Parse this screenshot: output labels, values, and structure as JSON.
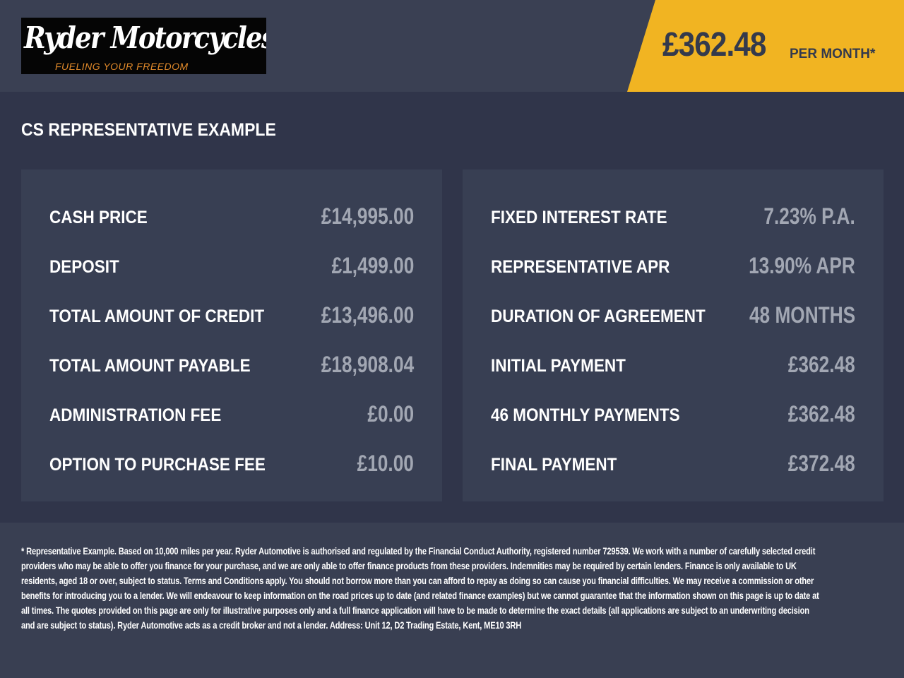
{
  "header": {
    "logo": {
      "name": "Ryder Motorcycles",
      "tagline": "FUELING YOUR FREEDOM"
    },
    "monthly_price": "£362.48",
    "per_month_label": "PER MONTH*",
    "accent_color": "#f1b422"
  },
  "section_title": "CS REPRESENTATIVE EXAMPLE",
  "left_panel": [
    {
      "label": "CASH PRICE",
      "value": "£14,995.00"
    },
    {
      "label": "DEPOSIT",
      "value": "£1,499.00"
    },
    {
      "label": "TOTAL AMOUNT OF CREDIT",
      "value": "£13,496.00"
    },
    {
      "label": "TOTAL AMOUNT PAYABLE",
      "value": "£18,908.04"
    },
    {
      "label": "ADMINISTRATION FEE",
      "value": "£0.00"
    },
    {
      "label": "OPTION TO PURCHASE FEE",
      "value": "£10.00"
    }
  ],
  "right_panel": [
    {
      "label": "FIXED INTEREST RATE",
      "value": "7.23% P.A."
    },
    {
      "label": "REPRESENTATIVE APR",
      "value": "13.90% APR"
    },
    {
      "label": "DURATION OF AGREEMENT",
      "value": "48 MONTHS"
    },
    {
      "label": "INITIAL PAYMENT",
      "value": "£362.48"
    },
    {
      "label": "46 MONTHLY PAYMENTS",
      "value": "£362.48"
    },
    {
      "label": "FINAL PAYMENT",
      "value": "£372.48"
    }
  ],
  "footer": {
    "disclaimer": "* Representative Example. Based on 10,000 miles per year. Ryder Automotive is authorised and regulated by the Financial Conduct Authority, registered number 729539. We work with a number of carefully selected credit providers who may be able to offer you finance for your purchase, and we are only able to offer finance products from these providers. Indemnities may be required by certain lenders. Finance is only available to UK residents, aged 18 or over, subject to status. Terms and Conditions apply. You should not borrow more than you can afford to repay as doing so can cause you financial difficulties. We may receive a commission or other benefits for introducing you to a lender. We will endeavour to keep information on the road prices up to date (and related finance examples) but we cannot guarantee that the information shown on this page is up to date at all times. The quotes provided on this page are only for illustrative purposes only and a full finance application will have to be made to determine the exact details (all applications are subject to an underwriting decision and are subject to status). Ryder Automotive acts as a credit broker and not a lender. Address: Unit 12, D2 Trading Estate, Kent, ME10 3RH"
  }
}
